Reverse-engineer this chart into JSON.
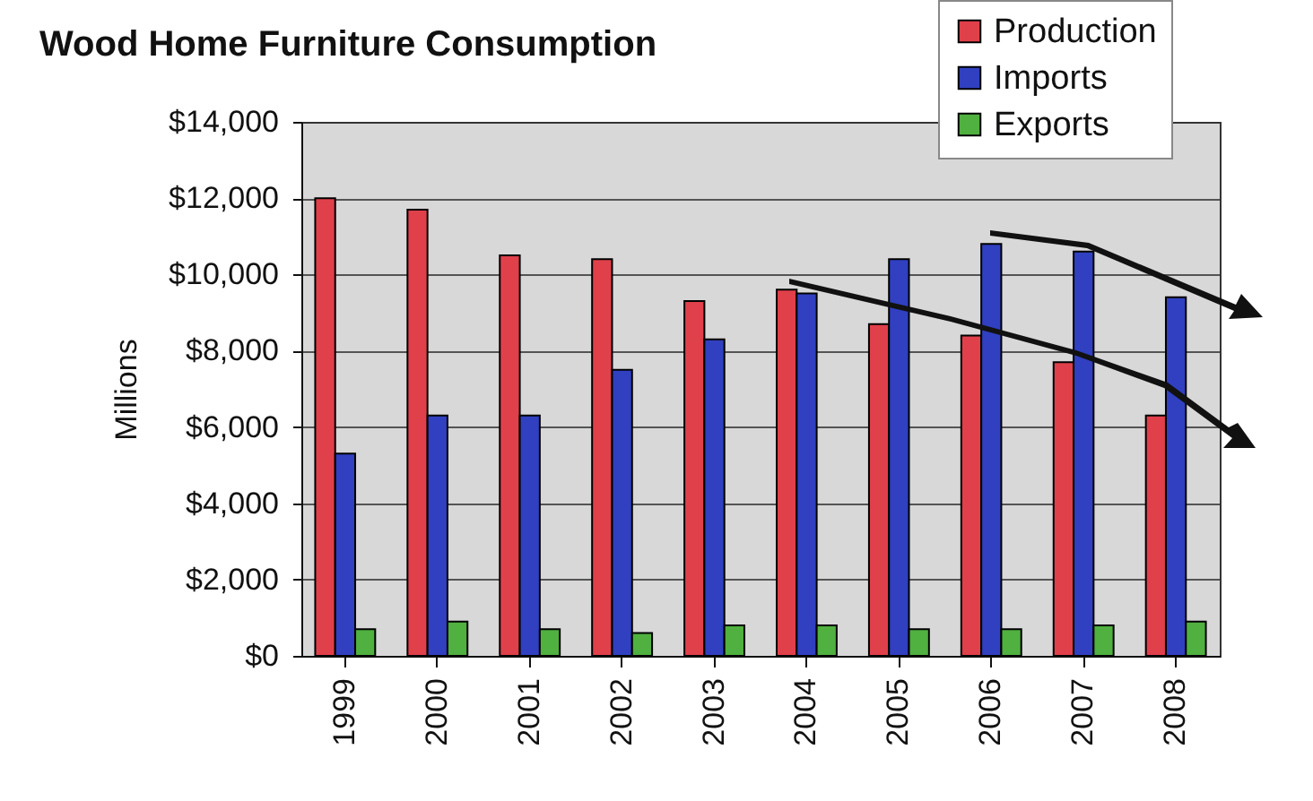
{
  "chart_data": {
    "type": "bar",
    "title": "Wood Home Furniture Consumption",
    "ylabel": "Millions",
    "categories": [
      "1999",
      "2000",
      "2001",
      "2002",
      "2003",
      "2004",
      "2005",
      "2006",
      "2007",
      "2008"
    ],
    "series": [
      {
        "name": "Production",
        "color": "#e0404a",
        "values": [
          12000,
          11700,
          10500,
          10400,
          9300,
          9600,
          8700,
          8400,
          7700,
          6300
        ]
      },
      {
        "name": "Imports",
        "color": "#3040c0",
        "values": [
          5300,
          6300,
          6300,
          7500,
          8300,
          9500,
          10400,
          10800,
          10600,
          9400
        ]
      },
      {
        "name": "Exports",
        "color": "#50b040",
        "values": [
          700,
          900,
          700,
          600,
          800,
          800,
          700,
          700,
          800,
          900
        ]
      }
    ],
    "ylim": [
      0,
      14000
    ],
    "yticks": [
      {
        "value": 0,
        "label": "$0"
      },
      {
        "value": 2000,
        "label": "$2,000"
      },
      {
        "value": 4000,
        "label": "$4,000"
      },
      {
        "value": 6000,
        "label": "$6,000"
      },
      {
        "value": 8000,
        "label": "$8,000"
      },
      {
        "value": 10000,
        "label": "$10,000"
      },
      {
        "value": 12000,
        "label": "$12,000"
      },
      {
        "value": 14000,
        "label": "$14,000"
      }
    ],
    "grid": "y",
    "legend": "top right"
  }
}
